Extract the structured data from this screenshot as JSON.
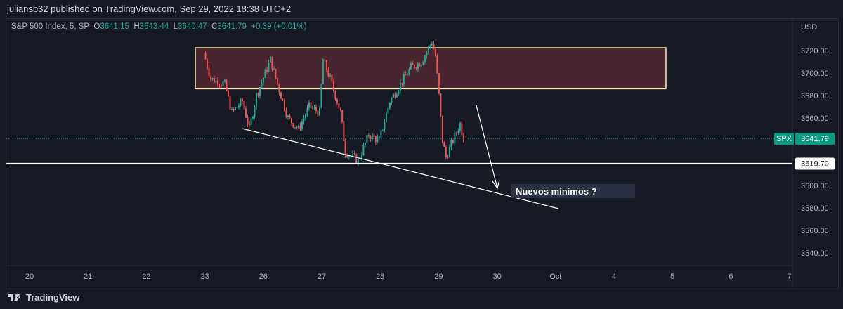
{
  "header": {
    "published": "juliansb32 published on TradingView.com, Sep 29, 2022 18:38 UTC+2"
  },
  "legend": {
    "symbol": "S&P 500 Index, 5, SP",
    "o_label": "O",
    "o": "3641.15",
    "h_label": "H",
    "h": "3643.44",
    "l_label": "L",
    "l": "3640.47",
    "c_label": "C",
    "c": "3641.79",
    "change": "+0.39 (+0.01%)"
  },
  "price_axis": {
    "currency": "USD",
    "ticks": [
      "3720.00",
      "3700.00",
      "3680.00",
      "3660.00",
      "3600.00",
      "3580.00",
      "3560.00",
      "3540.00"
    ]
  },
  "time_axis": {
    "ticks": [
      "20",
      "21",
      "22",
      "23",
      "26",
      "27",
      "28",
      "29",
      "30",
      "Oct",
      "4",
      "5",
      "6",
      "7"
    ]
  },
  "tags": {
    "symbol": "SPX",
    "last_price": "3641.79",
    "level": "3619.70"
  },
  "annotation": {
    "text": "Nuevos mínimos ?"
  },
  "footer": {
    "brand": "TradingView"
  },
  "colors": {
    "up": "#26a69a",
    "down": "#ef5350",
    "zone_fill": "#5b2a33",
    "zone_border": "#f5e6b0"
  },
  "chart_data": {
    "type": "candlestick",
    "title": "S&P 500 Index, 5, SP",
    "ylim": [
      3530,
      3745
    ],
    "last_price": 3641.79,
    "horizontal_level": 3619.7,
    "resistance_zone": [
      3686,
      3722.5
    ],
    "path_by_session": [
      [
        0,
        3718
      ],
      [
        0.12,
        3695
      ],
      [
        0.36,
        3690
      ],
      [
        0.48,
        3665
      ],
      [
        0.66,
        3675
      ],
      [
        0.78,
        3650
      ],
      [
        0.9,
        3680
      ],
      [
        1.14,
        3712
      ],
      [
        1.26,
        3690
      ],
      [
        1.44,
        3660
      ],
      [
        1.62,
        3650
      ],
      [
        1.8,
        3670
      ],
      [
        1.98,
        3665
      ],
      [
        2.04,
        3712
      ],
      [
        2.16,
        3695
      ],
      [
        2.34,
        3665
      ],
      [
        2.42,
        3630
      ],
      [
        2.64,
        3622
      ],
      [
        2.82,
        3645
      ],
      [
        3.0,
        3640
      ],
      [
        3.18,
        3675
      ],
      [
        3.36,
        3690
      ],
      [
        3.54,
        3705
      ],
      [
        3.72,
        3710
      ],
      [
        3.9,
        3728
      ],
      [
        3.96,
        3715
      ],
      [
        4.02,
        3680
      ],
      [
        4.08,
        3640
      ],
      [
        4.14,
        3625
      ],
      [
        4.26,
        3640
      ],
      [
        4.38,
        3655
      ],
      [
        4.44,
        3642
      ]
    ]
  }
}
